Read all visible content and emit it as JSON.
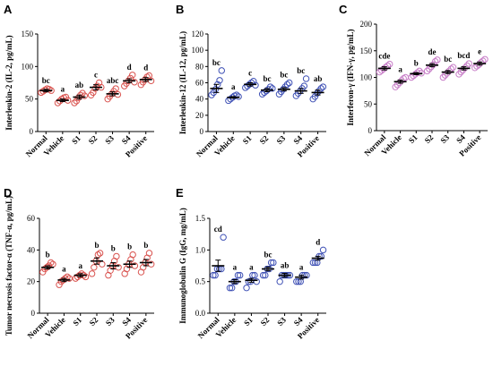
{
  "chart_data": [
    {
      "panel": "A",
      "type": "scatter",
      "ylabel": "Interleukin-2 (IL-2, pg/mL)",
      "categories": [
        "Normal",
        "Vehicle",
        "S1",
        "S2",
        "S3",
        "S4",
        "Positive"
      ],
      "ylim": [
        0,
        150
      ],
      "yticks": [
        0,
        50,
        100,
        150
      ],
      "color": "#d9534f",
      "points": [
        [
          60,
          62,
          64,
          66,
          65,
          63
        ],
        [
          44,
          47,
          50,
          52,
          53,
          48
        ],
        [
          44,
          47,
          52,
          56,
          59,
          55
        ],
        [
          56,
          60,
          66,
          70,
          75,
          68
        ],
        [
          50,
          54,
          58,
          62,
          66,
          57
        ],
        [
          70,
          74,
          78,
          82,
          87,
          76
        ],
        [
          72,
          76,
          80,
          84,
          86,
          78
        ]
      ],
      "means": [
        63,
        48,
        53,
        68,
        58,
        78,
        80
      ],
      "sem": [
        2,
        2,
        3,
        4,
        3,
        3,
        3
      ],
      "letters": [
        "bc",
        "a",
        "ab",
        "c",
        "abc",
        "d",
        "d"
      ]
    },
    {
      "panel": "B",
      "type": "scatter",
      "ylabel": "Interleukin-12 (IL-12, pg/mL)",
      "categories": [
        "Normal",
        "Vehicle",
        "S1",
        "S2",
        "S3",
        "S4",
        "Positive"
      ],
      "ylim": [
        0,
        120
      ],
      "yticks": [
        0,
        20,
        40,
        60,
        80,
        100,
        120
      ],
      "color": "#3f51b5",
      "points": [
        [
          45,
          48,
          52,
          58,
          63,
          75
        ],
        [
          38,
          40,
          42,
          44,
          45,
          43
        ],
        [
          54,
          56,
          58,
          60,
          62,
          57
        ],
        [
          46,
          48,
          50,
          52,
          55,
          53
        ],
        [
          46,
          49,
          52,
          55,
          58,
          60
        ],
        [
          44,
          47,
          50,
          53,
          56,
          65
        ],
        [
          40,
          43,
          47,
          50,
          53,
          55
        ]
      ],
      "means": [
        53,
        42,
        58,
        51,
        52,
        50,
        48
      ],
      "sem": [
        5,
        1,
        2,
        2,
        2,
        3,
        3
      ],
      "letters": [
        "bc",
        "a",
        "c",
        "bc",
        "bc",
        "bc",
        "ab"
      ]
    },
    {
      "panel": "C",
      "type": "scatter",
      "ylabel": "Interferon-γ (IFN-γ, pg/mL)",
      "categories": [
        "Normal",
        "Vehicle",
        "S1",
        "S2",
        "S3",
        "S4",
        "Positive"
      ],
      "ylim": [
        0,
        200
      ],
      "yticks": [
        0,
        50,
        100,
        150,
        200
      ],
      "color": "#c77dc7",
      "points": [
        [
          110,
          113,
          116,
          119,
          122,
          125
        ],
        [
          82,
          86,
          90,
          94,
          98,
          100
        ],
        [
          100,
          103,
          106,
          109,
          112,
          108
        ],
        [
          112,
          116,
          120,
          124,
          130,
          133
        ],
        [
          100,
          104,
          108,
          112,
          116,
          119
        ],
        [
          106,
          110,
          114,
          118,
          122,
          126
        ],
        [
          118,
          121,
          124,
          128,
          131,
          134
        ]
      ],
      "means": [
        117,
        92,
        107,
        123,
        110,
        117,
        126
      ],
      "sem": [
        3,
        3,
        2,
        3,
        3,
        3,
        3
      ],
      "letters": [
        "cde",
        "a",
        "b",
        "de",
        "bc",
        "bcd",
        "e"
      ]
    },
    {
      "panel": "D",
      "type": "scatter",
      "ylabel": "Tumor necrosis factor-α (TNF-α, pg/mL)",
      "categories": [
        "Normal",
        "Vehicle",
        "S1",
        "S2",
        "S3",
        "S4",
        "Positive"
      ],
      "ylim": [
        0,
        60
      ],
      "yticks": [
        0,
        20,
        40,
        60
      ],
      "color": "#d9534f",
      "points": [
        [
          26,
          28,
          29,
          30,
          32,
          31
        ],
        [
          18,
          20,
          21,
          22,
          23,
          22
        ],
        [
          22,
          23,
          24,
          25,
          24,
          23
        ],
        [
          25,
          29,
          33,
          37,
          38,
          31
        ],
        [
          24,
          27,
          30,
          33,
          36,
          29
        ],
        [
          25,
          28,
          31,
          34,
          37,
          30
        ],
        [
          26,
          29,
          32,
          35,
          38,
          31
        ]
      ],
      "means": [
        29,
        21,
        24,
        33,
        30,
        31,
        32
      ],
      "sem": [
        1,
        1,
        1,
        2,
        2,
        2,
        2
      ],
      "letters": [
        "b",
        "a",
        "a",
        "b",
        "b",
        "b",
        "b"
      ]
    },
    {
      "panel": "E",
      "type": "scatter",
      "ylabel": "Immunoglobulin G (IgG, mg/mL)",
      "categories": [
        "Normal",
        "Vehicle",
        "S1",
        "S2",
        "S3",
        "S4",
        "Positive"
      ],
      "ylim": [
        0,
        1.5
      ],
      "yticks": [
        0.0,
        0.5,
        1.0,
        1.5
      ],
      "color": "#3f51b5",
      "points": [
        [
          0.6,
          0.6,
          0.7,
          0.7,
          0.7,
          1.2
        ],
        [
          0.4,
          0.4,
          0.5,
          0.5,
          0.6,
          0.6
        ],
        [
          0.4,
          0.5,
          0.5,
          0.6,
          0.6,
          0.5
        ],
        [
          0.6,
          0.6,
          0.7,
          0.7,
          0.8,
          0.8
        ],
        [
          0.5,
          0.6,
          0.6,
          0.6,
          0.6,
          0.6
        ],
        [
          0.5,
          0.5,
          0.5,
          0.6,
          0.6,
          0.6
        ],
        [
          0.8,
          0.8,
          0.8,
          0.9,
          0.9,
          1.0
        ]
      ],
      "means": [
        0.75,
        0.5,
        0.52,
        0.7,
        0.6,
        0.57,
        0.87
      ],
      "sem": [
        0.09,
        0.03,
        0.03,
        0.03,
        0.03,
        0.03,
        0.03
      ],
      "letters": [
        "cd",
        "a",
        "a",
        "bc",
        "ab",
        "a",
        "d"
      ]
    }
  ]
}
